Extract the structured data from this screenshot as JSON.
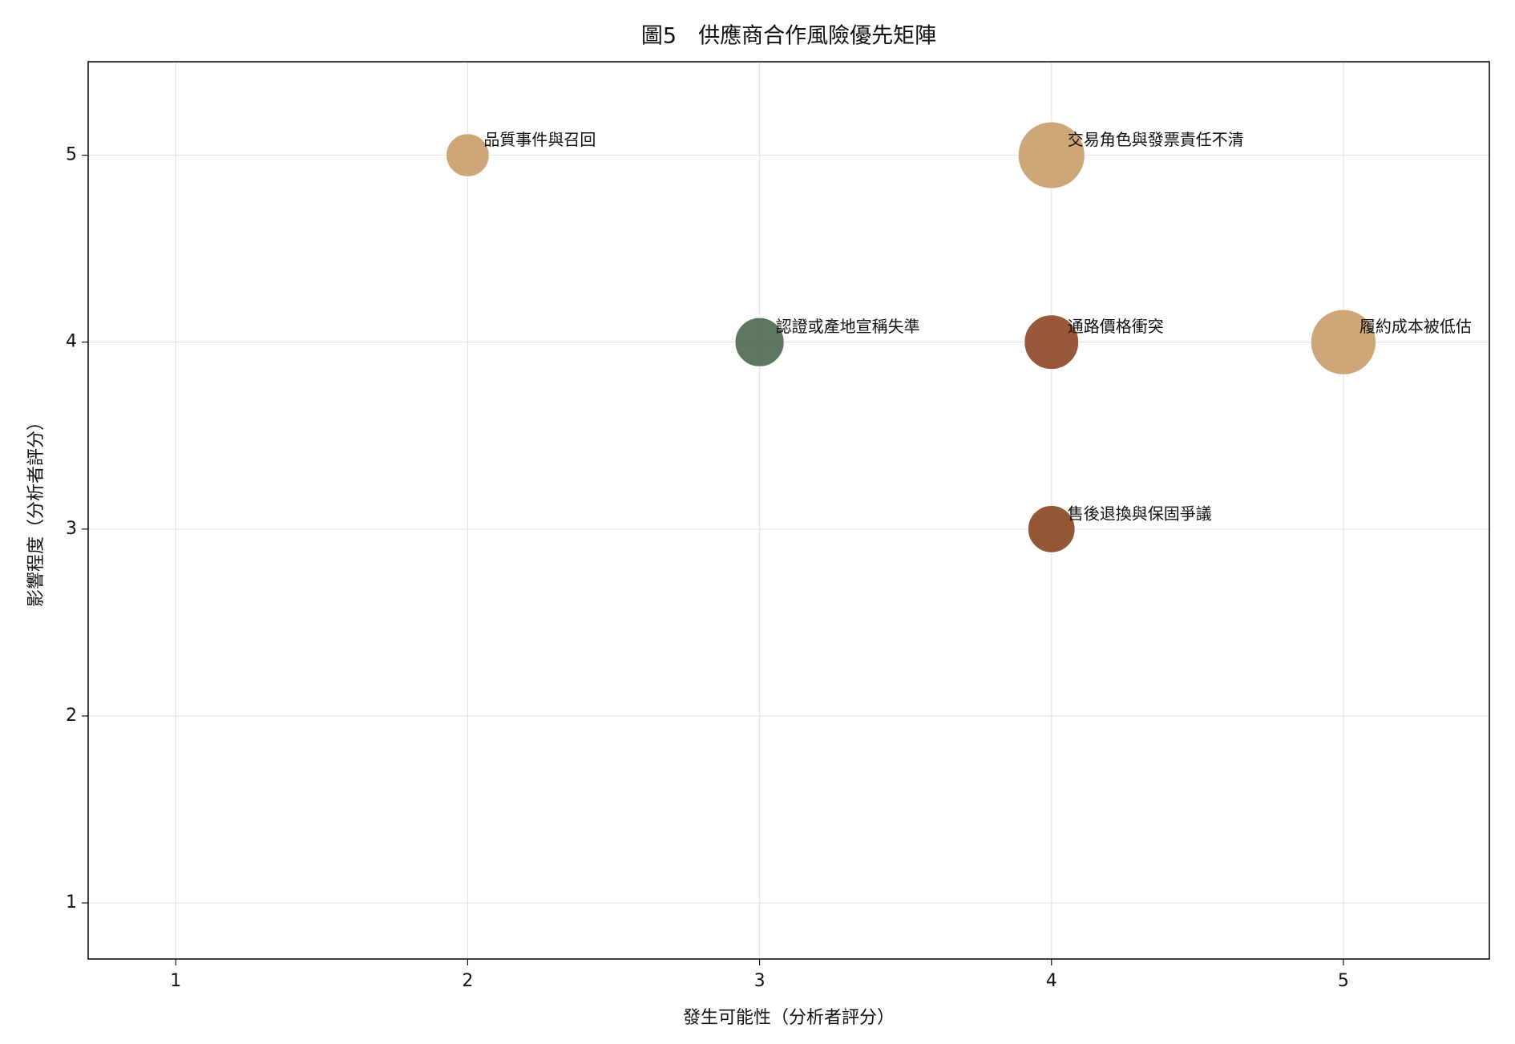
{
  "chart_data": {
    "type": "scatter",
    "title": "圖5　供應商合作風險優先矩陣",
    "x_label": "發生可能性（分析者評分）",
    "y_label": "影響程度（分析者評分）",
    "x": [
      2,
      4,
      3,
      4,
      5,
      4
    ],
    "values": [
      5,
      5,
      4,
      4,
      4,
      3
    ],
    "sizes": [
      500,
      1200,
      650,
      800,
      1150,
      600
    ],
    "labels": [
      "品質事件與召回",
      "交易角色與發票責任不清",
      "認證或產地宣稱失準",
      "通路價格衝突",
      "履約成本被低估",
      "售後退換與保固爭議"
    ],
    "colors": [
      "#c9a06c",
      "#c9a06c",
      "#4f6b51",
      "#8e4a2a",
      "#c9a06c",
      "#8a4a25"
    ],
    "xlim": [
      0.7,
      5.5
    ],
    "xticks": [
      1,
      2,
      3,
      4,
      5
    ],
    "ylim": [
      0.7,
      5.5
    ],
    "yticks": [
      1,
      2,
      3,
      4,
      5
    ],
    "grid": true
  }
}
